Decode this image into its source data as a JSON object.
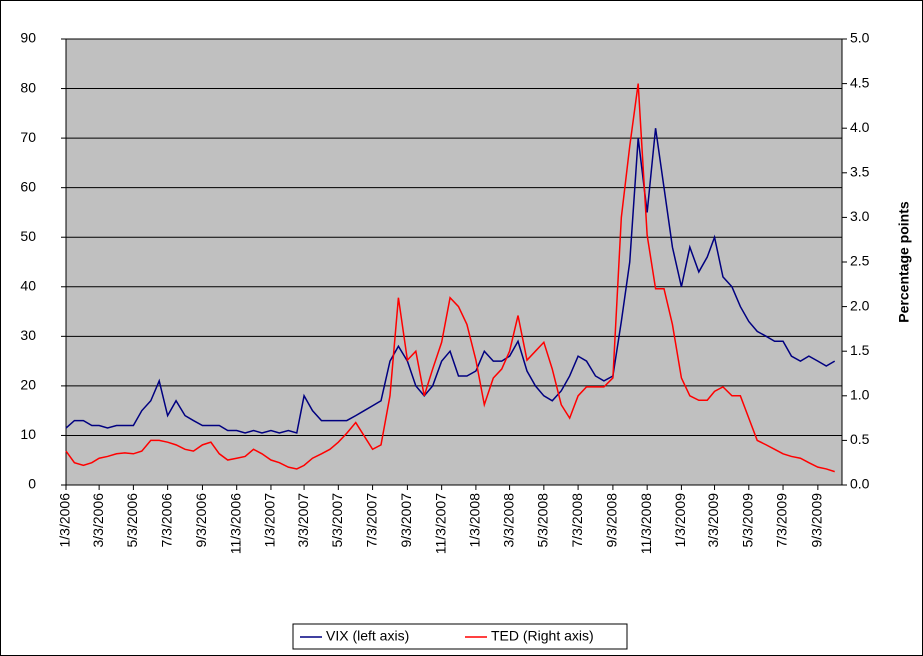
{
  "chart_data": {
    "type": "line",
    "x": [
      "1/3/2006",
      "1/18/2006",
      "2/3/2006",
      "2/18/2006",
      "3/3/2006",
      "3/18/2006",
      "4/3/2006",
      "4/18/2006",
      "5/3/2006",
      "5/18/2006",
      "6/3/2006",
      "6/18/2006",
      "7/3/2006",
      "7/18/2006",
      "8/3/2006",
      "8/18/2006",
      "9/3/2006",
      "9/18/2006",
      "10/3/2006",
      "10/18/2006",
      "11/3/2006",
      "11/18/2006",
      "12/3/2006",
      "12/18/2006",
      "1/3/2007",
      "1/18/2007",
      "2/3/2007",
      "2/18/2007",
      "3/3/2007",
      "3/18/2007",
      "4/3/2007",
      "4/18/2007",
      "5/3/2007",
      "5/18/2007",
      "6/3/2007",
      "6/18/2007",
      "7/3/2007",
      "7/18/2007",
      "8/3/2007",
      "8/18/2007",
      "9/3/2007",
      "9/18/2007",
      "10/3/2007",
      "10/18/2007",
      "11/3/2007",
      "11/18/2007",
      "12/3/2007",
      "12/18/2007",
      "1/3/2008",
      "1/18/2008",
      "2/3/2008",
      "2/18/2008",
      "3/3/2008",
      "3/18/2008",
      "4/3/2008",
      "4/18/2008",
      "5/3/2008",
      "5/18/2008",
      "6/3/2008",
      "6/18/2008",
      "7/3/2008",
      "7/18/2008",
      "8/3/2008",
      "8/18/2008",
      "9/3/2008",
      "9/18/2008",
      "10/3/2008",
      "10/18/2008",
      "11/3/2008",
      "11/18/2008",
      "12/3/2008",
      "12/18/2008",
      "1/3/2009",
      "1/18/2009",
      "2/3/2009",
      "2/18/2009",
      "3/3/2009",
      "3/18/2009",
      "4/3/2009",
      "4/18/2009",
      "5/3/2009",
      "5/18/2009",
      "6/3/2009",
      "6/18/2009",
      "7/3/2009",
      "7/18/2009",
      "8/3/2009",
      "8/18/2009",
      "9/3/2009",
      "9/18/2009",
      "10/3/2009"
    ],
    "series": [
      {
        "name": "VIX (left axis)",
        "color": "#000080",
        "axis": "y",
        "values": [
          11.5,
          13,
          13,
          12,
          12,
          11.5,
          12,
          12,
          12,
          15,
          17,
          21,
          14,
          17,
          14,
          13,
          12,
          12,
          12,
          11,
          11,
          10.5,
          11,
          10.5,
          11,
          10.5,
          11,
          10.5,
          18,
          15,
          13,
          13,
          13,
          13,
          14,
          15,
          16,
          17,
          25,
          28,
          25,
          20,
          18,
          20,
          25,
          27,
          22,
          22,
          23,
          27,
          25,
          25,
          26,
          29,
          23,
          20,
          18,
          17,
          19,
          22,
          26,
          25,
          22,
          21,
          22,
          33,
          45,
          70,
          55,
          72,
          60,
          48,
          40,
          48,
          43,
          46,
          50,
          42,
          40,
          36,
          33,
          31,
          30,
          29,
          29,
          26,
          25,
          26,
          25,
          24,
          25
        ]
      },
      {
        "name": "TED (Right axis)",
        "color": "#ff0000",
        "axis": "y2",
        "values": [
          0.38,
          0.25,
          0.22,
          0.25,
          0.3,
          0.32,
          0.35,
          0.36,
          0.35,
          0.38,
          0.5,
          0.5,
          0.48,
          0.45,
          0.4,
          0.38,
          0.45,
          0.48,
          0.35,
          0.28,
          0.3,
          0.32,
          0.4,
          0.35,
          0.28,
          0.25,
          0.2,
          0.18,
          0.22,
          0.3,
          0.35,
          0.4,
          0.48,
          0.58,
          0.7,
          0.55,
          0.4,
          0.45,
          1.0,
          2.1,
          1.4,
          1.5,
          1.0,
          1.3,
          1.6,
          2.1,
          2.0,
          1.8,
          1.4,
          0.9,
          1.2,
          1.3,
          1.5,
          1.9,
          1.4,
          1.5,
          1.6,
          1.3,
          0.9,
          0.75,
          1.0,
          1.1,
          1.1,
          1.1,
          1.2,
          3.0,
          3.8,
          4.5,
          2.8,
          2.2,
          2.2,
          1.8,
          1.2,
          1.0,
          0.95,
          0.95,
          1.05,
          1.1,
          1.0,
          1.0,
          0.75,
          0.5,
          0.45,
          0.4,
          0.35,
          0.32,
          0.3,
          0.25,
          0.2,
          0.18,
          0.15
        ]
      }
    ],
    "xlim": [
      "1/3/2006",
      "10/16/2009"
    ],
    "xticks": [
      "1/3/2006",
      "3/3/2006",
      "5/3/2006",
      "7/3/2006",
      "9/3/2006",
      "11/3/2006",
      "1/3/2007",
      "3/3/2007",
      "5/3/2007",
      "7/3/2007",
      "9/3/2007",
      "11/3/2007",
      "1/3/2008",
      "3/3/2008",
      "5/3/2008",
      "7/3/2008",
      "9/3/2008",
      "11/3/2008",
      "1/3/2009",
      "3/3/2009",
      "5/3/2009",
      "7/3/2009",
      "9/3/2009"
    ],
    "ylim": [
      0,
      90
    ],
    "yticks": [
      0,
      10,
      20,
      30,
      40,
      50,
      60,
      70,
      80,
      90
    ],
    "y2lim": [
      0,
      5
    ],
    "y2ticks": [
      {
        "value": 0,
        "label": "0.0"
      },
      0.5,
      {
        "value": 1,
        "label": "1.0"
      },
      1.5,
      {
        "value": 2,
        "label": "2.0"
      },
      2.5,
      {
        "value": 3,
        "label": "3.0"
      },
      3.5,
      {
        "value": 4,
        "label": "4.0"
      },
      4.5,
      {
        "value": 5,
        "label": "5.0"
      }
    ],
    "y2label": "Percentage points",
    "grid": true
  }
}
